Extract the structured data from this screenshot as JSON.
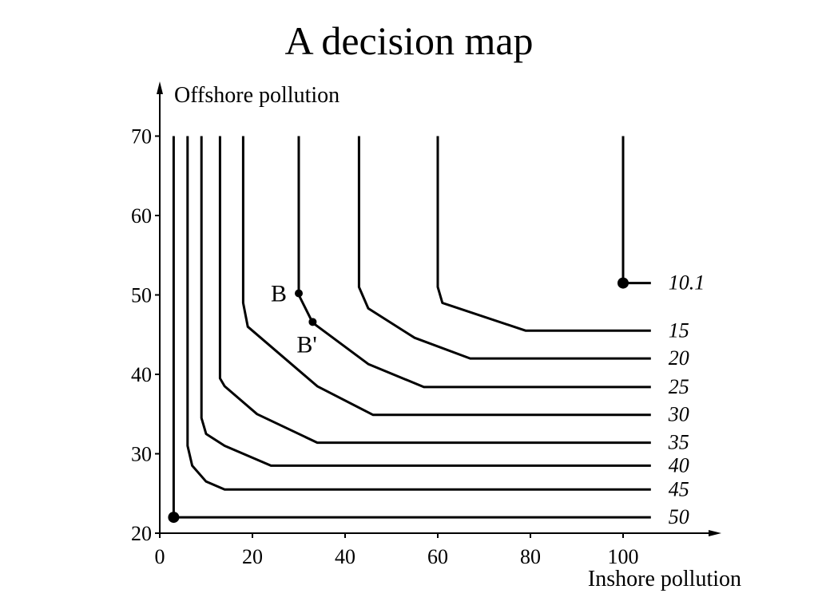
{
  "title": "A decision map",
  "chart_data": {
    "type": "line",
    "title": "A decision map",
    "xlabel": "Inshore pollution",
    "ylabel": "Offshore pollution",
    "xlim": [
      0,
      120
    ],
    "ylim": [
      20,
      70
    ],
    "xticks": [
      0,
      20,
      40,
      60,
      80,
      100
    ],
    "yticks": [
      20,
      30,
      40,
      50,
      60,
      70
    ],
    "series": [
      {
        "name": "10.1",
        "points": [
          [
            100,
            70
          ],
          [
            100,
            51.5
          ],
          [
            106,
            51.5
          ]
        ]
      },
      {
        "name": "15",
        "points": [
          [
            60,
            70
          ],
          [
            60,
            51
          ],
          [
            61,
            49
          ],
          [
            79,
            45.5
          ],
          [
            106,
            45.5
          ]
        ]
      },
      {
        "name": "20",
        "points": [
          [
            43,
            70
          ],
          [
            43,
            51
          ],
          [
            45,
            48.3
          ],
          [
            55,
            44.6
          ],
          [
            67,
            42
          ],
          [
            106,
            42
          ]
        ]
      },
      {
        "name": "25",
        "points": [
          [
            30,
            70
          ],
          [
            30,
            50
          ],
          [
            33,
            46.5
          ],
          [
            45,
            41.3
          ],
          [
            57,
            38.4
          ],
          [
            106,
            38.4
          ]
        ]
      },
      {
        "name": "30",
        "points": [
          [
            18,
            70
          ],
          [
            18,
            49
          ],
          [
            19,
            46
          ],
          [
            34,
            38.5
          ],
          [
            46,
            34.9
          ],
          [
            106,
            34.9
          ]
        ]
      },
      {
        "name": "35",
        "points": [
          [
            13,
            70
          ],
          [
            13,
            39.5
          ],
          [
            14,
            38.5
          ],
          [
            21,
            35
          ],
          [
            34,
            31.4
          ],
          [
            106,
            31.4
          ]
        ]
      },
      {
        "name": "40",
        "points": [
          [
            9,
            70
          ],
          [
            9,
            34.5
          ],
          [
            10,
            32.5
          ],
          [
            14,
            31
          ],
          [
            24,
            28.5
          ],
          [
            106,
            28.5
          ]
        ]
      },
      {
        "name": "45",
        "points": [
          [
            6,
            70
          ],
          [
            6,
            31
          ],
          [
            7,
            28.5
          ],
          [
            10,
            26.5
          ],
          [
            14,
            25.5
          ],
          [
            106,
            25.5
          ]
        ]
      },
      {
        "name": "50",
        "points": [
          [
            3,
            70
          ],
          [
            3,
            22
          ],
          [
            106,
            22
          ]
        ]
      }
    ],
    "markers": [
      {
        "label": "B",
        "x": 30,
        "y": 50.2
      },
      {
        "label": "B'",
        "x": 33,
        "y": 46.6
      },
      {
        "label": "",
        "x": 100,
        "y": 51.5
      },
      {
        "label": "",
        "x": 3,
        "y": 22
      }
    ],
    "legend": "curve labels at right end of each line",
    "grid": false
  }
}
